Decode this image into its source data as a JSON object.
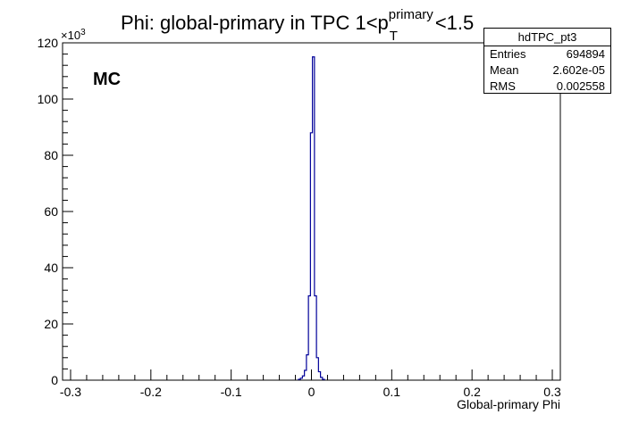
{
  "chart_data": {
    "type": "histogram",
    "title_prefix": "Phi: global-primary in TPC 1<p",
    "title_sup": "primary",
    "title_sub": "T",
    "title_suffix": "<1.5",
    "xlabel": "Global-primary Phi",
    "ylabel": "",
    "y_multiplier_label": "×10",
    "y_multiplier_exp": "3",
    "annotation": "MC",
    "xlim": [
      -0.31,
      0.31
    ],
    "ylim": [
      0,
      120000
    ],
    "x_ticks": [
      -0.3,
      -0.2,
      -0.1,
      0,
      0.1,
      0.2,
      0.3
    ],
    "x_tick_labels": [
      "-0.3",
      "-0.2",
      "-0.1",
      "0",
      "0.1",
      "0.2",
      "0.3"
    ],
    "y_ticks": [
      0,
      20000,
      40000,
      60000,
      80000,
      100000,
      120000
    ],
    "y_tick_labels": [
      "0",
      "20",
      "40",
      "60",
      "80",
      "100",
      "120"
    ],
    "line_color": "#000099",
    "bins": [
      {
        "x": -0.015,
        "y": 300
      },
      {
        "x": -0.0125,
        "y": 700
      },
      {
        "x": -0.01,
        "y": 1500
      },
      {
        "x": -0.0075,
        "y": 3500
      },
      {
        "x": -0.005,
        "y": 9000
      },
      {
        "x": -0.0025,
        "y": 30000
      },
      {
        "x": 0.0,
        "y": 88000
      },
      {
        "x": 0.0025,
        "y": 115000
      },
      {
        "x": 0.005,
        "y": 30000
      },
      {
        "x": 0.0075,
        "y": 8000
      },
      {
        "x": 0.01,
        "y": 3000
      },
      {
        "x": 0.0125,
        "y": 1000
      },
      {
        "x": 0.015,
        "y": 300
      }
    ],
    "grid": false,
    "legend": "none"
  },
  "stats": {
    "title": "hdTPC_pt3",
    "rows": [
      {
        "label": "Entries",
        "value": "694894"
      },
      {
        "label": "Mean",
        "value": "2.602e-05"
      },
      {
        "label": "RMS",
        "value": "0.002558"
      }
    ]
  }
}
